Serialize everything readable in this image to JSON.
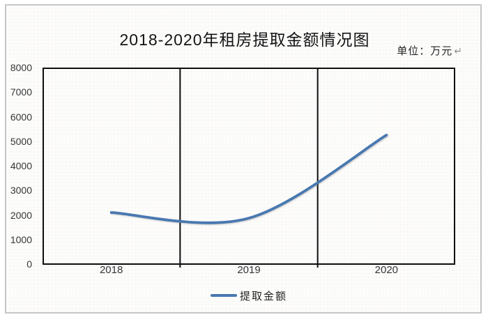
{
  "page": {
    "background": "#ffffff",
    "frame_color": "#c6c6c6"
  },
  "header": {
    "title": "2018-2020年租房提取金额情况图",
    "unit_label": "单位：万元",
    "return_mark": "↵"
  },
  "chart_data": {
    "type": "line",
    "title": "2018-2020年租房提取金额情况图",
    "unit": "万元",
    "categories": [
      "2018",
      "2019",
      "2020"
    ],
    "series": [
      {
        "name": "提取金额",
        "values": [
          2100,
          1870,
          5250
        ],
        "color": "#4878b0",
        "smooth": true,
        "line_width": 3.8
      }
    ],
    "ylim": [
      0,
      8000
    ],
    "ytick_step": 1000,
    "ytick_labels": [
      "0",
      "1000",
      "2000",
      "3000",
      "4000",
      "5000",
      "6000",
      "7000",
      "8000"
    ],
    "grid": "vertical-category-dividers",
    "divider_color": "#0d0d0d",
    "plot_border_color": "#0d0d0d",
    "legend_position": "bottom"
  },
  "legend": {
    "label": "提取金额"
  },
  "colors": {
    "title_text": "#141414",
    "axis_text": "#353535",
    "unit_text": "#262626",
    "return_mark": "#8f8f8f",
    "line_blue": "#4878b0"
  }
}
